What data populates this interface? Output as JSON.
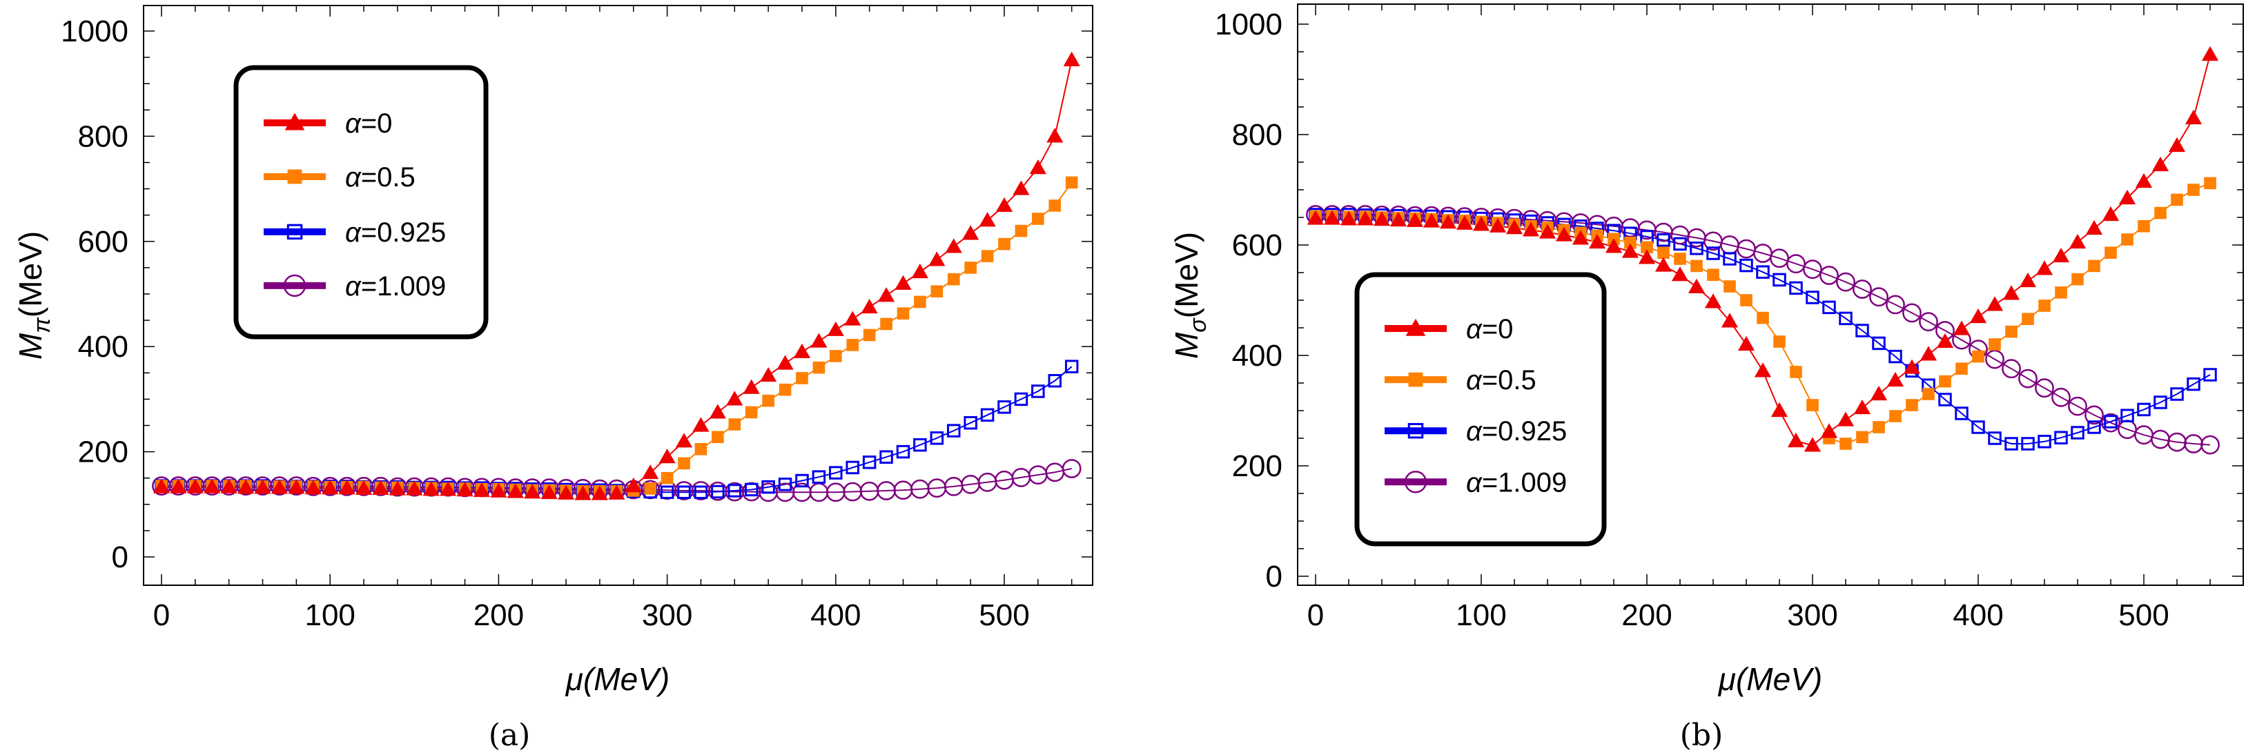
{
  "chart_data": [
    {
      "type": "line",
      "panel_caption": "(a)",
      "title": "",
      "xlabel": "μ(MeV)",
      "ylabel_main": "M",
      "ylabel_sub": "π",
      "ylabel_unit": "(MeV)",
      "xlim": [
        -10,
        540
      ],
      "ylim": [
        -40,
        1050
      ],
      "xticks": [
        0,
        100,
        200,
        300,
        400,
        500
      ],
      "yticks": [
        0,
        200,
        400,
        600,
        800,
        1000
      ],
      "grid": false,
      "legend_position": "upper-left",
      "x": [
        0,
        10,
        20,
        30,
        40,
        50,
        60,
        70,
        80,
        90,
        100,
        110,
        120,
        130,
        140,
        150,
        160,
        170,
        180,
        190,
        200,
        210,
        220,
        230,
        240,
        250,
        260,
        270,
        280,
        290,
        300,
        310,
        320,
        330,
        340,
        350,
        360,
        370,
        380,
        390,
        400,
        410,
        420,
        430,
        440,
        450,
        460,
        470,
        480,
        490,
        500,
        510,
        520,
        530,
        540
      ],
      "series": [
        {
          "name": "α=0",
          "alpha": "0",
          "color": "#ee0000",
          "marker": "triangle",
          "values": [
            133,
            133,
            133,
            133,
            133,
            132,
            132,
            132,
            132,
            131,
            131,
            131,
            130,
            130,
            129,
            129,
            128,
            128,
            127,
            126,
            125,
            124,
            123,
            122,
            121,
            120,
            120,
            121,
            135,
            160,
            190,
            220,
            250,
            275,
            300,
            322,
            345,
            368,
            390,
            410,
            432,
            452,
            475,
            497,
            520,
            542,
            565,
            590,
            615,
            640,
            668,
            700,
            740,
            800,
            945
          ]
        },
        {
          "name": "α=0.5",
          "alpha": "0.5",
          "color": "#ff8000",
          "marker": "square-filled",
          "values": [
            135,
            135,
            135,
            135,
            135,
            135,
            134,
            134,
            134,
            134,
            133,
            133,
            133,
            132,
            132,
            131,
            131,
            130,
            130,
            129,
            129,
            128,
            127,
            127,
            126,
            125,
            125,
            125,
            126,
            130,
            150,
            178,
            205,
            228,
            252,
            275,
            297,
            318,
            340,
            360,
            382,
            403,
            422,
            443,
            463,
            485,
            505,
            528,
            550,
            572,
            595,
            620,
            643,
            668,
            712
          ]
        },
        {
          "name": "α=0.925",
          "alpha": "0.925",
          "color": "#0000ee",
          "marker": "square-open",
          "values": [
            135,
            135,
            135,
            135,
            135,
            135,
            135,
            134,
            134,
            134,
            134,
            134,
            133,
            133,
            133,
            132,
            132,
            132,
            131,
            131,
            130,
            130,
            129,
            129,
            128,
            127,
            127,
            126,
            125,
            124,
            123,
            123,
            123,
            124,
            126,
            128,
            133,
            138,
            145,
            152,
            160,
            170,
            180,
            190,
            200,
            213,
            226,
            240,
            255,
            270,
            285,
            300,
            315,
            335,
            362
          ]
        },
        {
          "name": "α=1.009",
          "alpha": "1.009",
          "color": "#7f007f",
          "marker": "circle-open",
          "values": [
            135,
            135,
            135,
            135,
            135,
            135,
            135,
            135,
            135,
            134,
            134,
            134,
            134,
            134,
            133,
            133,
            133,
            133,
            132,
            132,
            132,
            131,
            131,
            131,
            130,
            130,
            129,
            129,
            128,
            128,
            127,
            126,
            126,
            125,
            124,
            124,
            123,
            123,
            123,
            123,
            123,
            124,
            125,
            126,
            127,
            129,
            131,
            134,
            138,
            142,
            146,
            151,
            156,
            161,
            168
          ]
        }
      ]
    },
    {
      "type": "line",
      "panel_caption": "(b)",
      "title": "",
      "xlabel": "μ(MeV)",
      "ylabel_main": "M",
      "ylabel_sub": "σ",
      "ylabel_unit": "(MeV)",
      "xlim": [
        -10,
        540
      ],
      "ylim": [
        -20,
        1030
      ],
      "xticks": [
        0,
        100,
        200,
        300,
        400,
        500
      ],
      "yticks": [
        0,
        200,
        400,
        600,
        800,
        1000
      ],
      "grid": false,
      "legend_position": "lower-left",
      "x": [
        0,
        10,
        20,
        30,
        40,
        50,
        60,
        70,
        80,
        90,
        100,
        110,
        120,
        130,
        140,
        150,
        160,
        170,
        180,
        190,
        200,
        210,
        220,
        230,
        240,
        250,
        260,
        270,
        280,
        290,
        300,
        310,
        320,
        330,
        340,
        350,
        360,
        370,
        380,
        390,
        400,
        410,
        420,
        430,
        440,
        450,
        460,
        470,
        480,
        490,
        500,
        510,
        520,
        530,
        540
      ],
      "series": [
        {
          "name": "α=0",
          "alpha": "0",
          "color": "#ee0000",
          "marker": "triangle",
          "values": [
            648,
            648,
            647,
            647,
            646,
            645,
            644,
            643,
            641,
            639,
            637,
            634,
            631,
            627,
            623,
            618,
            612,
            605,
            597,
            588,
            577,
            563,
            546,
            524,
            497,
            462,
            420,
            372,
            300,
            245,
            237,
            262,
            283,
            305,
            330,
            355,
            378,
            402,
            425,
            448,
            470,
            492,
            512,
            535,
            557,
            580,
            605,
            630,
            655,
            685,
            715,
            745,
            780,
            830,
            945
          ]
        },
        {
          "name": "α=0.5",
          "alpha": "0.5",
          "color": "#ff8000",
          "marker": "square-filled",
          "values": [
            652,
            652,
            651,
            651,
            650,
            649,
            648,
            647,
            645,
            644,
            642,
            640,
            637,
            634,
            631,
            627,
            622,
            617,
            611,
            604,
            596,
            586,
            575,
            562,
            546,
            525,
            500,
            468,
            425,
            370,
            310,
            250,
            240,
            252,
            270,
            290,
            310,
            330,
            353,
            376,
            398,
            420,
            443,
            466,
            490,
            514,
            538,
            562,
            586,
            610,
            634,
            658,
            682,
            700,
            712
          ]
        },
        {
          "name": "α=0.925",
          "alpha": "0.925",
          "color": "#0000ee",
          "marker": "square-open",
          "values": [
            655,
            655,
            655,
            654,
            654,
            653,
            652,
            652,
            651,
            650,
            648,
            647,
            645,
            643,
            640,
            637,
            634,
            630,
            626,
            621,
            615,
            609,
            602,
            594,
            585,
            575,
            563,
            551,
            537,
            522,
            505,
            487,
            467,
            445,
            422,
            398,
            372,
            346,
            320,
            295,
            270,
            250,
            240,
            240,
            244,
            251,
            260,
            270,
            280,
            291,
            302,
            315,
            330,
            348,
            365
          ]
        },
        {
          "name": "α=1.009",
          "alpha": "1.009",
          "color": "#7f007f",
          "marker": "circle-open",
          "values": [
            655,
            655,
            655,
            655,
            654,
            654,
            653,
            653,
            652,
            651,
            650,
            649,
            648,
            646,
            644,
            642,
            640,
            637,
            634,
            631,
            627,
            623,
            618,
            613,
            607,
            600,
            593,
            585,
            576,
            566,
            556,
            545,
            533,
            520,
            506,
            492,
            477,
            461,
            445,
            428,
            411,
            393,
            376,
            358,
            341,
            324,
            308,
            292,
            278,
            266,
            256,
            248,
            243,
            240,
            238
          ]
        }
      ]
    }
  ]
}
